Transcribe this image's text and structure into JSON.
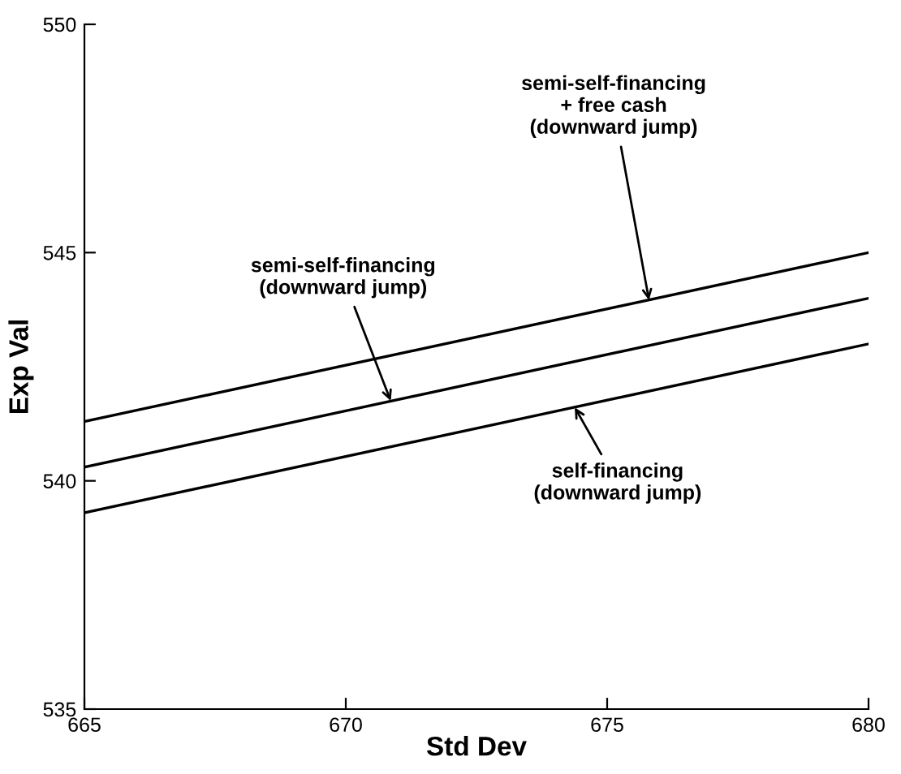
{
  "chart_data": {
    "type": "line",
    "xlabel": "Std Dev",
    "ylabel": "Exp Val",
    "x": [
      665,
      680
    ],
    "series": [
      {
        "color": "#000000",
        "values": [
          541.3,
          545.0
        ]
      },
      {
        "color": "#000000",
        "values": [
          540.3,
          544.0
        ]
      },
      {
        "color": "#000000",
        "values": [
          539.3,
          543.0
        ]
      }
    ],
    "annotations": [
      {
        "text": "semi-self-financing\n+ free cash\n(downward jump)",
        "x": 675.8,
        "y": 543.96
      },
      {
        "text": "semi-self-financing\n(downward jump)",
        "x": 670.86,
        "y": 541.75
      },
      {
        "text": "self-financing\n(downward jump)",
        "x": 674.38,
        "y": 541.61
      }
    ],
    "xlim": [
      665,
      680
    ],
    "xticks": [
      665,
      670,
      675,
      680
    ],
    "ylim": [
      535,
      550
    ],
    "yticks": [
      535,
      540,
      545,
      550
    ],
    "grid": false,
    "legend": false,
    "marker": "none",
    "line_style": "solid"
  }
}
